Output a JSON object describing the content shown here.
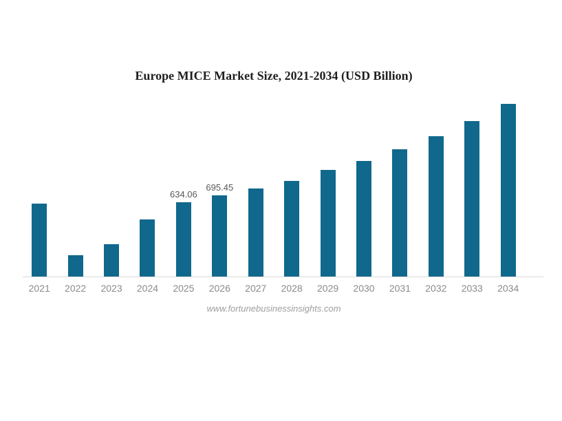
{
  "page": {
    "background": "#ffffff"
  },
  "header": {
    "title": "Europe MICE Market Size, 2021-2034 (USD Billion)"
  },
  "footer": {
    "source_text": "www.fortunebusinessinsights.com"
  },
  "colors": {
    "bar": "#10688c",
    "title_text": "#1f1f1f",
    "axis_line": "#d9d9d9",
    "tick_label": "#8a8a8a",
    "data_label": "#595959",
    "footer_text": "#9e9e9e"
  },
  "chart_data": {
    "type": "bar",
    "title": "Europe MICE Market Size, 2021-2034 (USD Billion)",
    "categories": [
      "2021",
      "2022",
      "2023",
      "2024",
      "2025",
      "2026",
      "2027",
      "2028",
      "2029",
      "2030",
      "2031",
      "2032",
      "2033",
      "2034"
    ],
    "values": [
      625,
      180,
      275,
      490,
      634.06,
      695.45,
      755,
      820,
      910,
      990,
      1090,
      1200,
      1330,
      1475
    ],
    "point_labels": {
      "2025": "634.06",
      "2026": "695.45"
    },
    "units": "USD Billion",
    "xlabel": "",
    "ylabel": "",
    "ylim": [
      0,
      1540
    ],
    "grid": false,
    "legend": false,
    "y_axis_visible": false,
    "baseline": 0,
    "bar_color": "#10688c",
    "source": "www.fortunebusinessinsights.com"
  }
}
